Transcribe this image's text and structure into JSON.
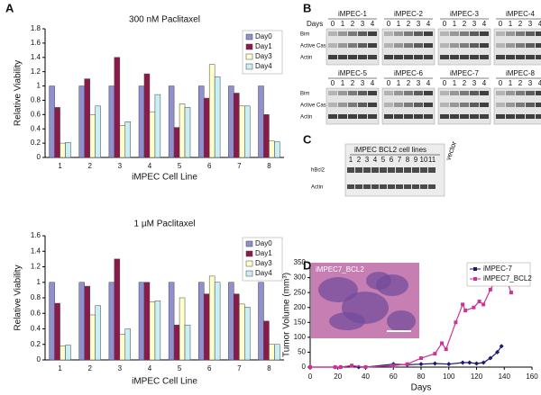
{
  "panel_labels": [
    "A",
    "B",
    "C",
    "D"
  ],
  "chart_data": [
    {
      "type": "bar",
      "title": "300 nM Paclitaxel",
      "y_label": "Relative Viability",
      "x_label": "iMPEC Cell Line",
      "categories": [
        "1",
        "2",
        "3",
        "4",
        "5",
        "6",
        "7",
        "8"
      ],
      "series": [
        {
          "name": "Day0",
          "color": "#9090d0",
          "values": [
            1.0,
            1.0,
            1.0,
            1.0,
            1.0,
            1.0,
            1.0,
            1.0
          ]
        },
        {
          "name": "Day1",
          "color": "#8b1a4a",
          "values": [
            0.7,
            1.1,
            1.4,
            1.17,
            0.42,
            0.83,
            0.9,
            0.6
          ]
        },
        {
          "name": "Day3",
          "color": "#ffffcc",
          "values": [
            0.2,
            0.6,
            0.45,
            0.64,
            0.75,
            1.3,
            0.72,
            0.23
          ]
        },
        {
          "name": "Day4",
          "color": "#c8eef6",
          "values": [
            0.21,
            0.72,
            0.5,
            0.88,
            0.7,
            1.13,
            0.72,
            0.22
          ]
        }
      ],
      "ylim": [
        0,
        1.8
      ],
      "yticks": [
        0,
        0.2,
        0.4,
        0.6,
        0.8,
        1,
        1.2,
        1.4,
        1.6,
        1.8
      ],
      "legend": "upper right"
    },
    {
      "type": "bar",
      "title": "1 µM Paclitaxel",
      "y_label": "Relative Viability",
      "x_label": "iMPEC Cell Line",
      "categories": [
        "1",
        "2",
        "3",
        "4",
        "5",
        "6",
        "7",
        "8"
      ],
      "series": [
        {
          "name": "Day0",
          "color": "#9090d0",
          "values": [
            1.0,
            1.0,
            1.0,
            1.0,
            1.0,
            1.0,
            1.0,
            1.0
          ]
        },
        {
          "name": "Day1",
          "color": "#8b1a4a",
          "values": [
            0.73,
            0.95,
            1.3,
            1.0,
            0.45,
            0.85,
            0.85,
            0.5
          ]
        },
        {
          "name": "Day3",
          "color": "#ffffcc",
          "values": [
            0.18,
            0.58,
            0.33,
            0.75,
            0.8,
            1.08,
            0.72,
            0.2
          ]
        },
        {
          "name": "Day4",
          "color": "#c8eef6",
          "values": [
            0.19,
            0.7,
            0.4,
            0.76,
            0.45,
            1.0,
            0.68,
            0.2
          ]
        }
      ],
      "ylim": [
        0,
        1.6
      ],
      "yticks": [
        0,
        0.2,
        0.4,
        0.6,
        0.8,
        1,
        1.2,
        1.4,
        1.6
      ],
      "legend": "upper right"
    },
    {
      "type": "line",
      "x_label": "Days",
      "y_label": "Tumor Volume (mm³)",
      "inset_label": "iMPEC7_BCL2",
      "series": [
        {
          "name": "iMPEC-7",
          "color": "#1a1a6e",
          "marker": "diamond",
          "x": [
            0,
            18,
            22,
            30,
            35,
            40,
            60,
            70,
            80,
            90,
            100,
            110,
            115,
            120,
            125,
            130,
            135,
            138
          ],
          "values": [
            0,
            0,
            0,
            5,
            0,
            0,
            10,
            8,
            10,
            12,
            10,
            15,
            15,
            12,
            15,
            30,
            50,
            70
          ]
        },
        {
          "name": "iMPEC7_BCL2",
          "color": "#cc3399",
          "marker": "square",
          "x": [
            0,
            18,
            22,
            30,
            40,
            60,
            70,
            80,
            90,
            95,
            98,
            105,
            110,
            112,
            118,
            122,
            125,
            130,
            135,
            138,
            145
          ],
          "values": [
            0,
            0,
            0,
            5,
            0,
            5,
            10,
            30,
            45,
            80,
            60,
            150,
            210,
            190,
            200,
            220,
            210,
            260,
            300,
            340,
            250
          ]
        }
      ],
      "xlim": [
        0,
        160
      ],
      "xticks": [
        0,
        20,
        40,
        60,
        80,
        100,
        120,
        140,
        160
      ],
      "ylim": [
        0,
        350
      ],
      "yticks": [
        0,
        50,
        100,
        150,
        200,
        250,
        300,
        350
      ],
      "legend": "upper right"
    }
  ],
  "blots": {
    "days_label": "Days",
    "days": [
      "0",
      "1",
      "2",
      "3",
      "4"
    ],
    "groups": [
      "iMPEC-1",
      "iMPEC-2",
      "iMPEC-3",
      "iMPEC-4",
      "iMPEC-5",
      "iMPEC-6",
      "iMPEC-7",
      "iMPEC-8"
    ],
    "rows": [
      "Bim",
      "Active Casp3",
      "Actin"
    ]
  },
  "bcl2_blot": {
    "title": "iMPEC BCL2 cell lines",
    "lanes": [
      "1",
      "2",
      "3",
      "4",
      "5",
      "6",
      "7",
      "8",
      "9",
      "10",
      "11"
    ],
    "vector": "vector",
    "rows": [
      "hBcl2",
      "Actin"
    ]
  }
}
